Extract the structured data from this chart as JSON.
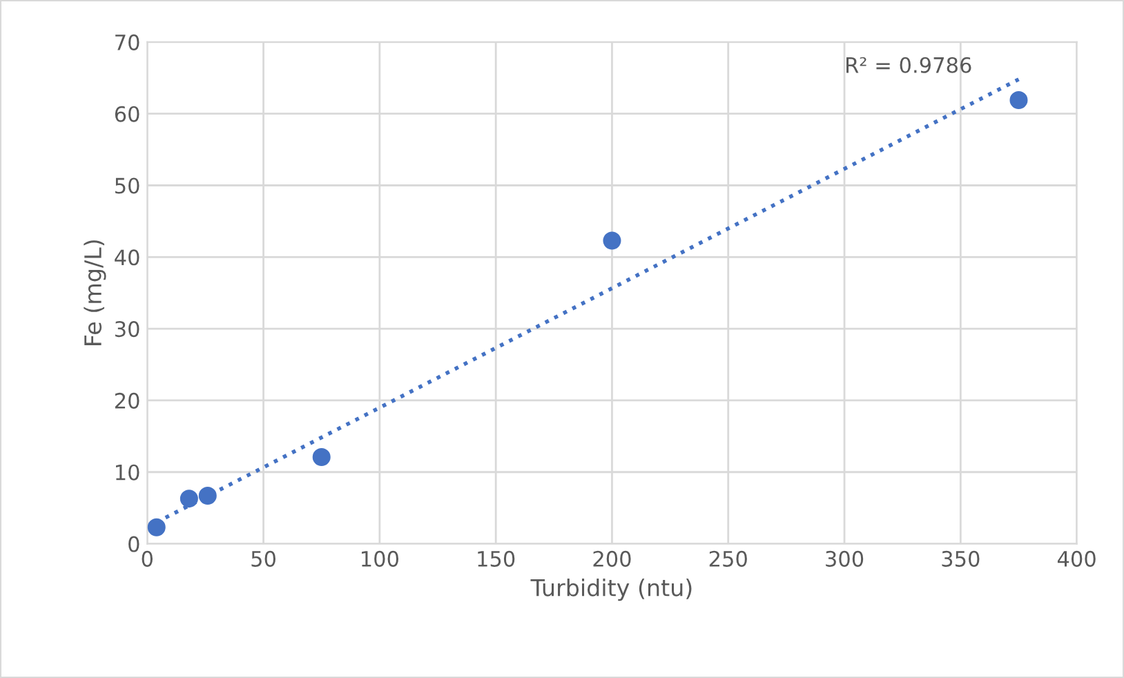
{
  "chart_data": {
    "type": "scatter",
    "xlabel": "Turbidity (ntu)",
    "ylabel": "Fe (mg/L)",
    "xlim": [
      0,
      400
    ],
    "xticks": [
      0,
      50,
      100,
      150,
      200,
      250,
      300,
      350,
      400
    ],
    "ylim": [
      0,
      70
    ],
    "yticks": [
      0,
      10,
      20,
      30,
      40,
      50,
      60,
      70
    ],
    "grid": true,
    "marker": "circle",
    "series": [
      {
        "color": "#4472c4",
        "x": [
          4,
          18,
          26,
          75,
          200,
          375
        ],
        "values": [
          2.3,
          6.3,
          6.7,
          12.1,
          42.3,
          61.9
        ]
      },
      {
        "type": "line",
        "color": "#4472c4",
        "line_style": "dotted",
        "marker": "none",
        "x": [
          4,
          375
        ],
        "values": [
          3.0,
          64.8
        ]
      }
    ],
    "annotations": [
      "R² = 0.9786"
    ]
  }
}
